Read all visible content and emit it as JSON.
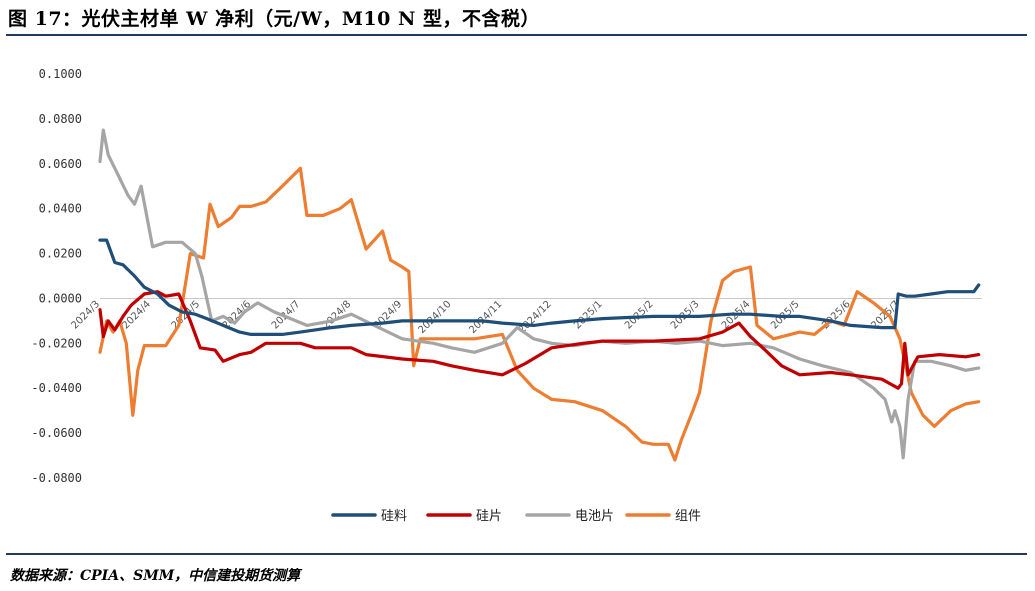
{
  "header": {
    "title": "图 17：光伏主材单 W 净利（元/W，M10 N 型，不含税）"
  },
  "footer": {
    "source": "数据来源：CPIA、SMM，中信建投期货测算"
  },
  "chart_data": {
    "type": "line",
    "ylim": [
      -0.08,
      0.1
    ],
    "yticks": [
      "0.1000",
      "0.0800",
      "0.0600",
      "0.0400",
      "0.0200",
      "0.0000",
      "-0.0200",
      "-0.0400",
      "-0.0600",
      "-0.0800"
    ],
    "ytick_values": [
      0.1,
      0.08,
      0.06,
      0.04,
      0.02,
      0,
      -0.02,
      -0.04,
      -0.06,
      -0.08
    ],
    "x_start": "2024-03-01",
    "x_end": "2025-08-20",
    "xticks": [
      {
        "label": "2024/3",
        "date": "2024-03-01"
      },
      {
        "label": "2024/4",
        "date": "2024-04-01"
      },
      {
        "label": "2024/5",
        "date": "2024-05-01"
      },
      {
        "label": "2024/6",
        "date": "2024-06-01"
      },
      {
        "label": "2024/7",
        "date": "2024-07-01"
      },
      {
        "label": "2024/8",
        "date": "2024-08-01"
      },
      {
        "label": "2024/9",
        "date": "2024-09-01"
      },
      {
        "label": "2024/10",
        "date": "2024-10-01"
      },
      {
        "label": "2024/11",
        "date": "2024-11-01"
      },
      {
        "label": "2024/12",
        "date": "2024-12-01"
      },
      {
        "label": "2025/1",
        "date": "2025-01-01"
      },
      {
        "label": "2025/2",
        "date": "2025-02-01"
      },
      {
        "label": "2025/3",
        "date": "2025-03-01"
      },
      {
        "label": "2025/4",
        "date": "2025-04-01"
      },
      {
        "label": "2025/5",
        "date": "2025-05-01"
      },
      {
        "label": "2025/6",
        "date": "2025-06-01"
      },
      {
        "label": "2025/7",
        "date": "2025-07-01"
      }
    ],
    "legend_position": "bottom",
    "grid": false,
    "series": [
      {
        "name": "硅料",
        "color": "#1f4e79",
        "points": [
          [
            "2024-03-01",
            0.026
          ],
          [
            "2024-03-05",
            0.026
          ],
          [
            "2024-03-10",
            0.016
          ],
          [
            "2024-03-15",
            0.015
          ],
          [
            "2024-03-22",
            0.01
          ],
          [
            "2024-03-28",
            0.005
          ],
          [
            "2024-04-05",
            0.002
          ],
          [
            "2024-04-12",
            -0.003
          ],
          [
            "2024-04-20",
            -0.006
          ],
          [
            "2024-04-28",
            -0.007
          ],
          [
            "2024-05-05",
            -0.009
          ],
          [
            "2024-05-15",
            -0.012
          ],
          [
            "2024-05-25",
            -0.015
          ],
          [
            "2024-06-01",
            -0.016
          ],
          [
            "2024-06-20",
            -0.016
          ],
          [
            "2024-07-01",
            -0.015
          ],
          [
            "2024-07-20",
            -0.013
          ],
          [
            "2024-08-01",
            -0.012
          ],
          [
            "2024-08-20",
            -0.011
          ],
          [
            "2024-09-01",
            -0.01
          ],
          [
            "2024-10-01",
            -0.01
          ],
          [
            "2024-10-20",
            -0.01
          ],
          [
            "2024-11-01",
            -0.011
          ],
          [
            "2024-11-20",
            -0.012
          ],
          [
            "2024-12-01",
            -0.011
          ],
          [
            "2024-12-15",
            -0.01
          ],
          [
            "2025-01-01",
            -0.009
          ],
          [
            "2025-02-01",
            -0.008
          ],
          [
            "2025-03-01",
            -0.008
          ],
          [
            "2025-03-20",
            -0.007
          ],
          [
            "2025-04-01",
            -0.007
          ],
          [
            "2025-04-20",
            -0.008
          ],
          [
            "2025-05-01",
            -0.008
          ],
          [
            "2025-05-20",
            -0.01
          ],
          [
            "2025-06-01",
            -0.012
          ],
          [
            "2025-06-20",
            -0.013
          ],
          [
            "2025-06-28",
            -0.013
          ],
          [
            "2025-06-30",
            0.002
          ],
          [
            "2025-07-05",
            0.001
          ],
          [
            "2025-07-10",
            0.001
          ],
          [
            "2025-07-20",
            0.002
          ],
          [
            "2025-07-30",
            0.003
          ],
          [
            "2025-08-10",
            0.003
          ],
          [
            "2025-08-15",
            0.003
          ],
          [
            "2025-08-18",
            0.006
          ]
        ]
      },
      {
        "name": "硅片",
        "color": "#c00000",
        "points": [
          [
            "2024-03-01",
            -0.005
          ],
          [
            "2024-03-03",
            -0.017
          ],
          [
            "2024-03-06",
            -0.01
          ],
          [
            "2024-03-10",
            -0.014
          ],
          [
            "2024-03-15",
            -0.008
          ],
          [
            "2024-03-20",
            -0.003
          ],
          [
            "2024-03-28",
            0.002
          ],
          [
            "2024-04-05",
            0.003
          ],
          [
            "2024-04-10",
            0.001
          ],
          [
            "2024-04-18",
            0.002
          ],
          [
            "2024-04-25",
            -0.01
          ],
          [
            "2024-05-01",
            -0.022
          ],
          [
            "2024-05-10",
            -0.023
          ],
          [
            "2024-05-15",
            -0.028
          ],
          [
            "2024-05-25",
            -0.025
          ],
          [
            "2024-06-01",
            -0.024
          ],
          [
            "2024-06-10",
            -0.02
          ],
          [
            "2024-07-01",
            -0.02
          ],
          [
            "2024-07-10",
            -0.022
          ],
          [
            "2024-08-01",
            -0.022
          ],
          [
            "2024-08-10",
            -0.025
          ],
          [
            "2024-09-01",
            -0.027
          ],
          [
            "2024-09-20",
            -0.028
          ],
          [
            "2024-10-01",
            -0.03
          ],
          [
            "2024-10-15",
            -0.032
          ],
          [
            "2024-11-01",
            -0.034
          ],
          [
            "2024-11-15",
            -0.029
          ],
          [
            "2024-12-01",
            -0.022
          ],
          [
            "2024-12-20",
            -0.02
          ],
          [
            "2025-01-01",
            -0.019
          ],
          [
            "2025-02-01",
            -0.019
          ],
          [
            "2025-03-01",
            -0.018
          ],
          [
            "2025-03-15",
            -0.015
          ],
          [
            "2025-03-25",
            -0.011
          ],
          [
            "2025-04-01",
            -0.017
          ],
          [
            "2025-04-10",
            -0.023
          ],
          [
            "2025-04-20",
            -0.03
          ],
          [
            "2025-05-01",
            -0.034
          ],
          [
            "2025-05-20",
            -0.033
          ],
          [
            "2025-06-01",
            -0.034
          ],
          [
            "2025-06-20",
            -0.036
          ],
          [
            "2025-06-30",
            -0.04
          ],
          [
            "2025-07-02",
            -0.038
          ],
          [
            "2025-07-04",
            -0.02
          ],
          [
            "2025-07-06",
            -0.034
          ],
          [
            "2025-07-12",
            -0.026
          ],
          [
            "2025-07-25",
            -0.025
          ],
          [
            "2025-08-10",
            -0.026
          ],
          [
            "2025-08-18",
            -0.025
          ]
        ]
      },
      {
        "name": "电池片",
        "color": "#a5a5a5",
        "points": [
          [
            "2024-03-01",
            0.061
          ],
          [
            "2024-03-03",
            0.075
          ],
          [
            "2024-03-06",
            0.064
          ],
          [
            "2024-03-12",
            0.055
          ],
          [
            "2024-03-18",
            0.046
          ],
          [
            "2024-03-22",
            0.042
          ],
          [
            "2024-03-26",
            0.05
          ],
          [
            "2024-04-02",
            0.023
          ],
          [
            "2024-04-10",
            0.025
          ],
          [
            "2024-04-20",
            0.025
          ],
          [
            "2024-04-28",
            0.02
          ],
          [
            "2024-05-02",
            0.01
          ],
          [
            "2024-05-08",
            -0.01
          ],
          [
            "2024-05-15",
            -0.008
          ],
          [
            "2024-05-22",
            -0.011
          ],
          [
            "2024-05-28",
            -0.006
          ],
          [
            "2024-06-05",
            -0.002
          ],
          [
            "2024-06-15",
            -0.006
          ],
          [
            "2024-06-25",
            -0.009
          ],
          [
            "2024-07-05",
            -0.012
          ],
          [
            "2024-07-20",
            -0.01
          ],
          [
            "2024-08-01",
            -0.007
          ],
          [
            "2024-08-15",
            -0.012
          ],
          [
            "2024-09-01",
            -0.018
          ],
          [
            "2024-09-20",
            -0.02
          ],
          [
            "2024-10-01",
            -0.022
          ],
          [
            "2024-10-15",
            -0.024
          ],
          [
            "2024-11-01",
            -0.02
          ],
          [
            "2024-11-10",
            -0.013
          ],
          [
            "2024-11-20",
            -0.018
          ],
          [
            "2024-12-01",
            -0.02
          ],
          [
            "2024-12-15",
            -0.021
          ],
          [
            "2025-01-01",
            -0.019
          ],
          [
            "2025-01-15",
            -0.02
          ],
          [
            "2025-02-01",
            -0.019
          ],
          [
            "2025-02-15",
            -0.02
          ],
          [
            "2025-03-01",
            -0.019
          ],
          [
            "2025-03-15",
            -0.021
          ],
          [
            "2025-04-01",
            -0.02
          ],
          [
            "2025-04-15",
            -0.022
          ],
          [
            "2025-05-01",
            -0.027
          ],
          [
            "2025-05-15",
            -0.03
          ],
          [
            "2025-06-01",
            -0.033
          ],
          [
            "2025-06-15",
            -0.04
          ],
          [
            "2025-06-22",
            -0.045
          ],
          [
            "2025-06-26",
            -0.055
          ],
          [
            "2025-06-28",
            -0.05
          ],
          [
            "2025-07-01",
            -0.057
          ],
          [
            "2025-07-03",
            -0.071
          ],
          [
            "2025-07-06",
            -0.045
          ],
          [
            "2025-07-10",
            -0.028
          ],
          [
            "2025-07-20",
            -0.028
          ],
          [
            "2025-08-01",
            -0.03
          ],
          [
            "2025-08-10",
            -0.032
          ],
          [
            "2025-08-18",
            -0.031
          ]
        ]
      },
      {
        "name": "组件",
        "color": "#ed7d31",
        "points": [
          [
            "2024-03-01",
            -0.024
          ],
          [
            "2024-03-05",
            -0.01
          ],
          [
            "2024-03-09",
            -0.015
          ],
          [
            "2024-03-13",
            -0.01
          ],
          [
            "2024-03-17",
            -0.02
          ],
          [
            "2024-03-21",
            -0.052
          ],
          [
            "2024-03-24",
            -0.032
          ],
          [
            "2024-03-28",
            -0.021
          ],
          [
            "2024-04-10",
            -0.021
          ],
          [
            "2024-04-18",
            -0.012
          ],
          [
            "2024-04-25",
            0.02
          ],
          [
            "2024-05-03",
            0.018
          ],
          [
            "2024-05-07",
            0.042
          ],
          [
            "2024-05-12",
            0.032
          ],
          [
            "2024-05-20",
            0.036
          ],
          [
            "2024-05-25",
            0.041
          ],
          [
            "2024-06-01",
            0.041
          ],
          [
            "2024-06-10",
            0.043
          ],
          [
            "2024-06-20",
            0.05
          ],
          [
            "2024-07-01",
            0.058
          ],
          [
            "2024-07-05",
            0.037
          ],
          [
            "2024-07-15",
            0.037
          ],
          [
            "2024-07-25",
            0.04
          ],
          [
            "2024-08-01",
            0.044
          ],
          [
            "2024-08-10",
            0.022
          ],
          [
            "2024-08-20",
            0.03
          ],
          [
            "2024-08-25",
            0.017
          ],
          [
            "2024-09-01",
            0.014
          ],
          [
            "2024-09-05",
            0.012
          ],
          [
            "2024-09-08",
            -0.03
          ],
          [
            "2024-09-12",
            -0.018
          ],
          [
            "2024-09-20",
            -0.018
          ],
          [
            "2024-10-01",
            -0.018
          ],
          [
            "2024-10-15",
            -0.018
          ],
          [
            "2024-11-01",
            -0.016
          ],
          [
            "2024-11-10",
            -0.032
          ],
          [
            "2024-11-20",
            -0.04
          ],
          [
            "2024-12-01",
            -0.045
          ],
          [
            "2024-12-15",
            -0.046
          ],
          [
            "2025-01-01",
            -0.05
          ],
          [
            "2025-01-15",
            -0.057
          ],
          [
            "2025-01-25",
            -0.064
          ],
          [
            "2025-02-01",
            -0.065
          ],
          [
            "2025-02-10",
            -0.065
          ],
          [
            "2025-02-14",
            -0.072
          ],
          [
            "2025-02-18",
            -0.063
          ],
          [
            "2025-02-25",
            -0.05
          ],
          [
            "2025-03-01",
            -0.042
          ],
          [
            "2025-03-08",
            -0.01
          ],
          [
            "2025-03-15",
            0.008
          ],
          [
            "2025-03-22",
            0.012
          ],
          [
            "2025-04-01",
            0.014
          ],
          [
            "2025-04-05",
            -0.012
          ],
          [
            "2025-04-15",
            -0.018
          ],
          [
            "2025-05-01",
            -0.015
          ],
          [
            "2025-05-10",
            -0.016
          ],
          [
            "2025-05-20",
            -0.01
          ],
          [
            "2025-05-28",
            -0.012
          ],
          [
            "2025-06-05",
            0.003
          ],
          [
            "2025-06-15",
            -0.002
          ],
          [
            "2025-06-25",
            -0.008
          ],
          [
            "2025-07-01",
            -0.018
          ],
          [
            "2025-07-08",
            -0.042
          ],
          [
            "2025-07-15",
            -0.052
          ],
          [
            "2025-07-22",
            -0.057
          ],
          [
            "2025-08-01",
            -0.05
          ],
          [
            "2025-08-10",
            -0.047
          ],
          [
            "2025-08-18",
            -0.046
          ]
        ]
      }
    ]
  }
}
